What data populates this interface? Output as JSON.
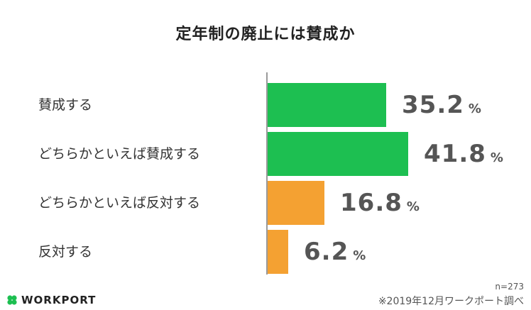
{
  "chart_data": {
    "type": "bar",
    "orientation": "horizontal",
    "title": "定年制の廃止には賛成か",
    "categories": [
      "賛成する",
      "どちらかといえば賛成する",
      "どちらかといえば反対する",
      "反対する"
    ],
    "values": [
      35.2,
      41.8,
      16.8,
      6.2
    ],
    "value_unit": "%",
    "colors": [
      "#1dbf51",
      "#1dbf51",
      "#f4a132",
      "#f4a132"
    ],
    "grid": false,
    "legend": "none"
  },
  "notes": {
    "sample": "n=273",
    "source": "※2019年12月ワークポート調べ"
  },
  "logo": {
    "text": "WORKPORT",
    "icon": "clover-icon",
    "color": "#1dbf51"
  }
}
